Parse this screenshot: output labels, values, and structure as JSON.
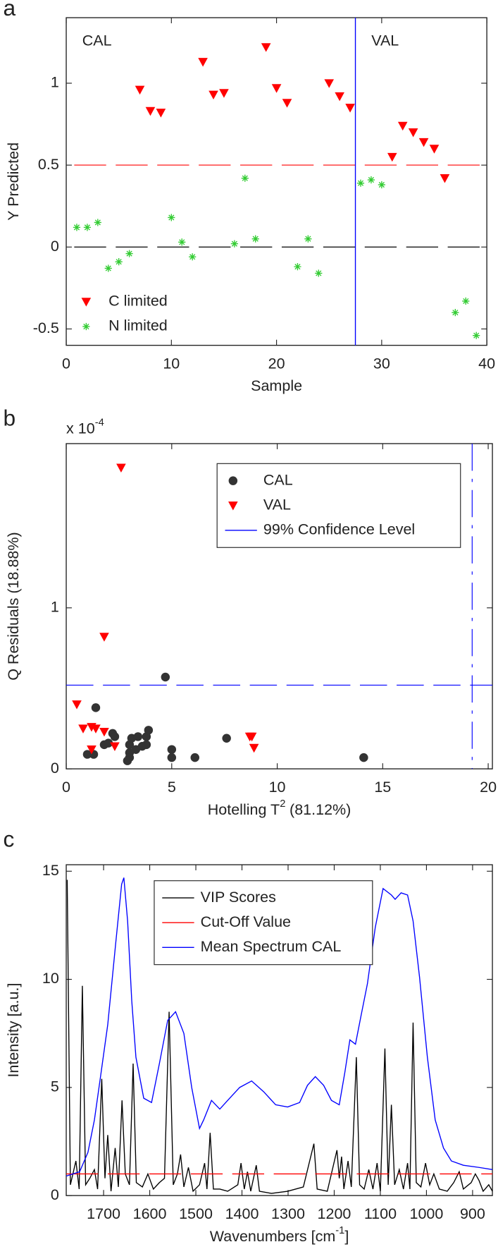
{
  "chart_data": [
    {
      "type": "scatter",
      "panel_label": "a",
      "xlabel": "Sample",
      "ylabel": "Y Predicted",
      "xlim": [
        0,
        40
      ],
      "ylim": [
        -0.6,
        1.4
      ],
      "xticks": [
        0,
        10,
        20,
        30,
        40
      ],
      "yticks": [
        -0.5,
        0,
        0.5,
        1
      ],
      "annotations": [
        "CAL",
        "VAL"
      ],
      "split_x": 27.5,
      "split_color": "#0000ff",
      "reference_lines": [
        {
          "value": 0.5,
          "color": "#ff0000"
        },
        {
          "value": 0,
          "color": "#000000"
        }
      ],
      "legend": "lower left",
      "legend_frame": false,
      "series": [
        {
          "name": "C limited",
          "color": "#ff0000",
          "marker": "triangle",
          "x": [
            7,
            8,
            9,
            13,
            14,
            15,
            19,
            20,
            21,
            25,
            26,
            27,
            31,
            32,
            33,
            34,
            35,
            36
          ],
          "values": [
            0.96,
            0.83,
            0.82,
            1.13,
            0.93,
            0.94,
            1.22,
            0.97,
            0.88,
            1.0,
            0.92,
            0.85,
            0.55,
            0.74,
            0.7,
            0.64,
            0.6,
            0.42
          ]
        },
        {
          "name": "N limited",
          "color": "#33cc33",
          "marker": "asterisk",
          "x": [
            1,
            2,
            3,
            4,
            5,
            6,
            10,
            11,
            12,
            16,
            17,
            18,
            22,
            23,
            24,
            28,
            29,
            30,
            37,
            38,
            39
          ],
          "values": [
            0.12,
            0.12,
            0.15,
            -0.13,
            -0.09,
            -0.04,
            0.18,
            0.03,
            -0.06,
            0.02,
            0.42,
            0.05,
            -0.12,
            0.05,
            -0.16,
            0.39,
            0.41,
            0.38,
            -0.4,
            -0.33,
            -0.54
          ]
        }
      ]
    },
    {
      "type": "scatter",
      "panel_label": "b",
      "xlabel": {
        "text": "Hotelling T",
        "sup": "2",
        "after": "(81.12%)"
      },
      "ylabel": "Q Residuals (18.88%)",
      "y_multiplier": {
        "text": "x 10",
        "sup": "-4"
      },
      "xlim": [
        0,
        20.2
      ],
      "ylim": [
        0,
        2.02
      ],
      "xticks": [
        0,
        5,
        10,
        15,
        20
      ],
      "yticks": [
        0,
        1
      ],
      "confidence": {
        "name": "99% Confidence Level",
        "color": "#0000ff",
        "x": 19.24,
        "y": 0.52
      },
      "legend": "upper right",
      "legend_frame": true,
      "series": [
        {
          "name": "CAL",
          "color": "#333333",
          "marker": "circle",
          "x": [
            4.7,
            1.4,
            1.0,
            1.3,
            1.8,
            2.2,
            2.3,
            2.0,
            3.0,
            3.0,
            3.0,
            3.1,
            3.4,
            3.6,
            3.8,
            3.9,
            3.8,
            5.0,
            5.0,
            6.1,
            7.6,
            14.1,
            3.3,
            2.9
          ],
          "values": [
            0.57,
            0.38,
            0.09,
            0.09,
            0.15,
            0.22,
            0.2,
            0.16,
            0.15,
            0.1,
            0.07,
            0.19,
            0.2,
            0.14,
            0.2,
            0.24,
            0.15,
            0.12,
            0.07,
            0.07,
            0.19,
            0.07,
            0.12,
            0.05
          ]
        },
        {
          "name": "VAL",
          "color": "#ff0000",
          "marker": "triangle",
          "x": [
            2.6,
            1.8,
            0.5,
            0.8,
            1.2,
            1.4,
            1.8,
            1.2,
            2.3,
            8.7,
            8.8,
            8.9
          ],
          "values": [
            1.87,
            0.82,
            0.4,
            0.25,
            0.26,
            0.25,
            0.23,
            0.12,
            0.14,
            0.2,
            0.2,
            0.13
          ]
        }
      ]
    },
    {
      "type": "line",
      "panel_label": "c",
      "xlabel": {
        "text": "Wavenumbers [cm",
        "sup": "-1",
        "after": "]"
      },
      "ylabel": "Intensity [a.u.]",
      "xlim": [
        1781,
        857
      ],
      "ylim": [
        0,
        15.3
      ],
      "xticks": [
        1700,
        1600,
        1500,
        1400,
        1300,
        1200,
        1100,
        1000,
        900
      ],
      "yticks": [
        0,
        5,
        10,
        15
      ],
      "legend": "upper center",
      "legend_frame": true,
      "series": [
        {
          "name": "VIP Scores",
          "color": "#000000",
          "dashed": false,
          "x": [
            1779,
            1772,
            1760,
            1753,
            1746,
            1739,
            1730,
            1720,
            1713,
            1704,
            1697,
            1691,
            1684,
            1675,
            1668,
            1660,
            1653,
            1644,
            1636,
            1629,
            1616,
            1604,
            1592,
            1579,
            1568,
            1558,
            1549,
            1540,
            1533,
            1526,
            1516,
            1506,
            1492,
            1481,
            1476,
            1469,
            1462,
            1448,
            1431,
            1409,
            1402,
            1395,
            1388,
            1381,
            1369,
            1362,
            1336,
            1301,
            1267,
            1244,
            1237,
            1215,
            1194,
            1189,
            1184,
            1179,
            1170,
            1163,
            1152,
            1145,
            1135,
            1125,
            1116,
            1107,
            1100,
            1090,
            1083,
            1076,
            1069,
            1059,
            1050,
            1041,
            1036,
            1029,
            1022,
            1012,
            1002,
            993,
            984,
            972,
            955,
            941,
            929,
            920,
            903,
            894,
            886,
            877,
            865,
            857
          ],
          "values": [
            14.6,
            0.5,
            1.6,
            0.3,
            9.7,
            0.5,
            0.8,
            1.2,
            0.3,
            5.4,
            0.8,
            2.8,
            0.2,
            2.2,
            0.4,
            4.4,
            1.0,
            0.5,
            6.1,
            0.6,
            0.4,
            1.0,
            0.3,
            0.6,
            0.8,
            8.5,
            0.5,
            1.0,
            1.9,
            0.4,
            1.3,
            0.2,
            0.5,
            1.5,
            0.3,
            2.9,
            0.3,
            0.3,
            0.2,
            0.5,
            1.5,
            0.3,
            1.1,
            0.2,
            1.4,
            0.2,
            0.1,
            0.2,
            0.4,
            2.4,
            0.3,
            0.2,
            2.1,
            0.8,
            1.8,
            0.3,
            1.6,
            0.4,
            6.4,
            0.5,
            0.3,
            1.2,
            0.3,
            1.5,
            0.2,
            6.8,
            0.5,
            4.2,
            0.5,
            1.2,
            0.3,
            1.5,
            0.3,
            8.0,
            0.6,
            0.4,
            1.5,
            0.5,
            1.0,
            0.3,
            0.2,
            0.6,
            1.1,
            0.3,
            0.6,
            1.0,
            0.7,
            0.2,
            0.5,
            0.2
          ]
        },
        {
          "name": "Cut-Off Value",
          "color": "#ff0000",
          "dashed": true,
          "x": [
            1781,
            857
          ],
          "values": [
            1,
            1
          ]
        },
        {
          "name": "Mean Spectrum CAL",
          "color": "#0000ff",
          "dashed": false,
          "x": [
            1781,
            1752,
            1734,
            1720,
            1708,
            1691,
            1674,
            1661,
            1656,
            1648,
            1639,
            1630,
            1613,
            1596,
            1579,
            1561,
            1544,
            1526,
            1509,
            1492,
            1483,
            1466,
            1448,
            1431,
            1405,
            1379,
            1353,
            1327,
            1301,
            1275,
            1258,
            1241,
            1223,
            1206,
            1189,
            1177,
            1166,
            1154,
            1142,
            1128,
            1111,
            1094,
            1076,
            1068,
            1055,
            1041,
            1029,
            1015,
            998,
            981,
            963,
            946,
            920,
            886,
            857
          ],
          "values": [
            0.9,
            1.1,
            2.0,
            3.5,
            5.3,
            7.9,
            11.6,
            14.4,
            14.7,
            12.7,
            9,
            6.4,
            4.5,
            4.3,
            6.1,
            8.1,
            8.5,
            7.5,
            5.0,
            3.1,
            3.5,
            4.4,
            4.0,
            4.4,
            5.0,
            5.3,
            4.8,
            4.2,
            4.1,
            4.3,
            5.1,
            5.5,
            5.1,
            4.4,
            4.2,
            5.7,
            7.2,
            7.0,
            8.3,
            9.8,
            12.4,
            14.2,
            13.9,
            13.7,
            14.0,
            13.9,
            12.7,
            10.1,
            6.4,
            3.5,
            2.2,
            1.6,
            1.4,
            1.3,
            1.2
          ]
        }
      ]
    }
  ]
}
